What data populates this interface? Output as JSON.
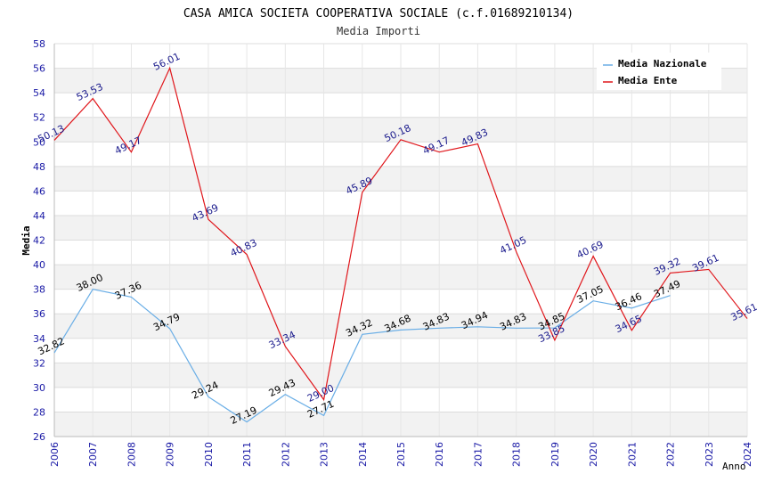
{
  "chart_data": {
    "type": "line",
    "title": "CASA AMICA SOCIETA COOPERATIVA SOCIALE (c.f.01689210134)",
    "subtitle": "Media Importi",
    "xlabel": "Anno",
    "ylabel": "Media",
    "ylim": [
      26,
      58
    ],
    "ytick_step": 2,
    "x": [
      "2006",
      "2007",
      "2008",
      "2009",
      "2010",
      "2011",
      "2012",
      "2013",
      "2014",
      "2015",
      "2016",
      "2017",
      "2018",
      "2019",
      "2020",
      "2021",
      "2022",
      "2023",
      "2024"
    ],
    "series": [
      {
        "name": "Media Nazionale",
        "color": "#6aaee6",
        "values": [
          32.82,
          38.0,
          37.36,
          34.79,
          29.24,
          27.19,
          29.43,
          27.71,
          34.32,
          34.68,
          34.83,
          34.94,
          34.83,
          34.85,
          37.05,
          36.46,
          37.49,
          null,
          null
        ],
        "labels": [
          "32.82",
          "38.00",
          "37.36",
          "34.79",
          "29.24",
          "27.19",
          "29.43",
          "27.71",
          "34.32",
          "34.68",
          "34.83",
          "34.94",
          "34.83",
          "34.85",
          "37.05",
          "36.46",
          "37.49",
          null,
          null
        ]
      },
      {
        "name": "Media Ente",
        "color": "#e0161b",
        "values": [
          50.13,
          53.53,
          49.17,
          56.01,
          43.69,
          40.83,
          33.34,
          29.0,
          45.89,
          50.18,
          49.17,
          49.83,
          41.05,
          33.85,
          40.69,
          34.65,
          39.32,
          39.61,
          35.61
        ],
        "labels": [
          "50.13",
          "53.53",
          "49.17",
          "56.01",
          "43.69",
          "40.83",
          "33.34",
          "29.00",
          "45.89",
          "50.18",
          "49.17",
          "49.83",
          "41.05",
          "33.85",
          "40.69",
          "34.65",
          "39.32",
          "39.61",
          "35.61"
        ]
      }
    ],
    "legend_position": "top-right",
    "grid": true
  }
}
